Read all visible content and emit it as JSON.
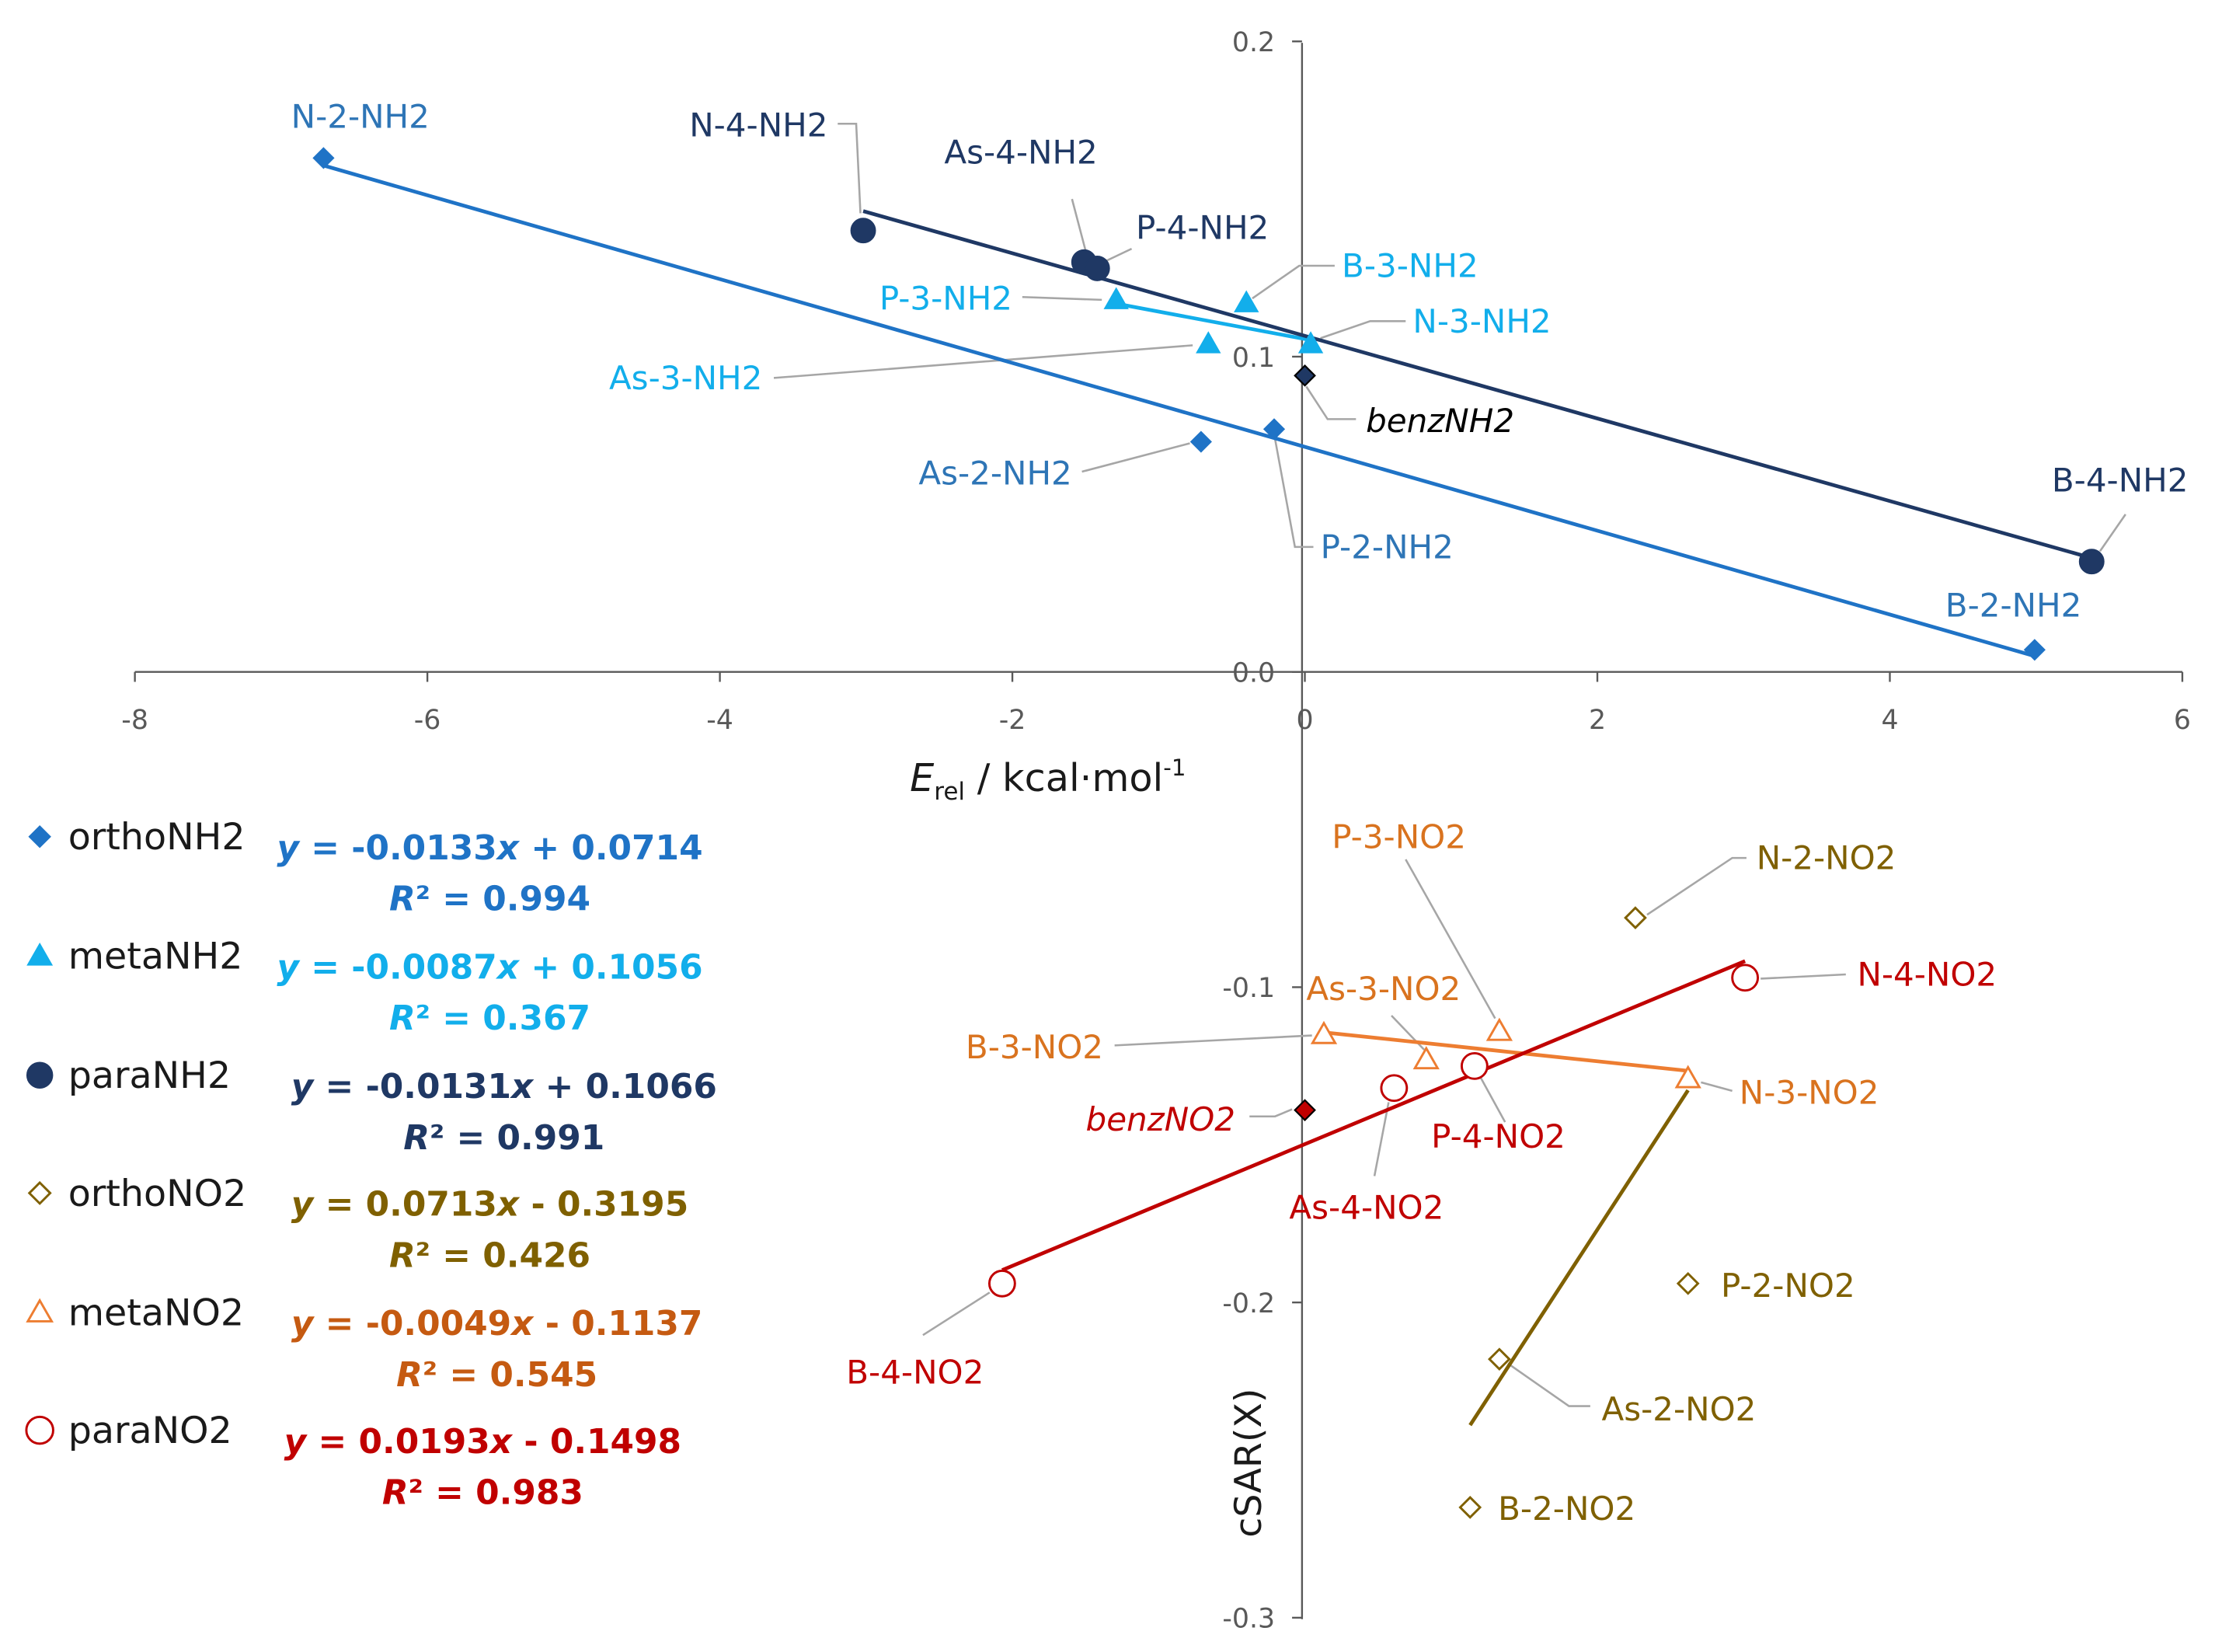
{
  "chart_data": {
    "type": "scatter",
    "xlabel": {
      "main": "E",
      "sub": "rel",
      "rest": " / kcal·mol",
      "sup": "-1"
    },
    "ylabel": "cSAR(X)",
    "xlim": [
      -8,
      6
    ],
    "ylim": [
      -0.3,
      0.2
    ],
    "xticks": [
      "-8",
      "-6",
      "-4",
      "-2",
      "0",
      "2",
      "4",
      "6"
    ],
    "xtick_values": [
      -8,
      -6,
      -4,
      -2,
      0,
      2,
      4,
      6
    ],
    "yticks": [
      "0.2",
      "0.1",
      "0.0",
      "-0.1",
      "-0.2",
      "-0.3"
    ],
    "ytick_values": [
      0.2,
      0.1,
      0.0,
      -0.1,
      -0.2,
      -0.3
    ],
    "grid": false,
    "legend_placement": "left",
    "series": [
      {
        "name": "orthoNH2",
        "color": "#1F73C6",
        "label_color": "#2E75B6",
        "marker": "diamond-filled",
        "equation": {
          "y": "y",
          "rest": " = -0.0133",
          "x": "x",
          "tail": " + 0.0714"
        },
        "r2": {
          "R": "R",
          "rest": "² = 0.994"
        },
        "slope": -0.0133,
        "intercept": 0.0714,
        "points": [
          {
            "label": "N-2-NH2",
            "x": -6.71,
            "y": 0.163
          },
          {
            "label": "As-2-NH2",
            "x": -0.71,
            "y": 0.073
          },
          {
            "label": "P-2-NH2",
            "x": -0.21,
            "y": 0.077
          },
          {
            "label": "B-2-NH2",
            "x": 4.99,
            "y": 0.007
          }
        ]
      },
      {
        "name": "metaNH2",
        "color": "#12AEEB",
        "label_color": "#12AEEB",
        "marker": "triangle-filled",
        "equation": {
          "y": "y",
          "rest": " = -0.0087",
          "x": "x",
          "tail": " + 0.1056"
        },
        "r2": {
          "R": "R",
          "rest": "² = 0.367"
        },
        "slope": -0.0087,
        "intercept": 0.1056,
        "points": [
          {
            "label": "P-3-NH2",
            "x": -1.29,
            "y": 0.118
          },
          {
            "label": "As-3-NH2",
            "x": -0.66,
            "y": 0.104
          },
          {
            "label": "B-3-NH2",
            "x": -0.4,
            "y": 0.117
          },
          {
            "label": "N-3-NH2",
            "x": 0.04,
            "y": 0.104
          }
        ]
      },
      {
        "name": "paraNH2",
        "color": "#1F3864",
        "label_color": "#1F3864",
        "marker": "circle-filled",
        "equation": {
          "y": "y",
          "rest": " = -0.0131",
          "x": "x",
          "tail": " + 0.1066"
        },
        "r2": {
          "R": "R",
          "rest": "² = 0.991"
        },
        "slope": -0.0131,
        "intercept": 0.1066,
        "points": [
          {
            "label": "N-4-NH2",
            "x": -3.02,
            "y": 0.14
          },
          {
            "label": "As-4-NH2",
            "x": -1.51,
            "y": 0.13
          },
          {
            "label": "P-4-NH2",
            "x": -1.42,
            "y": 0.128
          },
          {
            "label": "B-4-NH2",
            "x": 5.38,
            "y": 0.035
          }
        ]
      },
      {
        "name": "orthoNO2",
        "color": "#7F6000",
        "label_color": "#7F6000",
        "marker": "diamond-open",
        "equation": {
          "y": "y",
          "rest": " = 0.0713",
          "x": "x",
          "tail": " - 0.3195"
        },
        "r2": {
          "R": "R",
          "rest": "² = 0.426"
        },
        "slope": 0.0713,
        "intercept": -0.3195,
        "points": [
          {
            "label": "N-2-NO2",
            "x": 2.26,
            "y": -0.078
          },
          {
            "label": "P-2-NO2",
            "x": 2.62,
            "y": -0.194
          },
          {
            "label": "As-2-NO2",
            "x": 1.33,
            "y": -0.218
          },
          {
            "label": "B-2-NO2",
            "x": 1.13,
            "y": -0.265
          }
        ]
      },
      {
        "name": "metaNO2",
        "color": "#ED7D31",
        "label_color": "#D9731F",
        "eq_color": "#C55A11",
        "marker": "triangle-open",
        "equation": {
          "y": "y",
          "rest": " = -0.0049",
          "x": "x",
          "tail": " - 0.1137"
        },
        "r2": {
          "R": "R",
          "rest": "² = 0.545"
        },
        "slope": -0.0049,
        "intercept": -0.1137,
        "points": [
          {
            "label": "B-3-NO2",
            "x": 0.13,
            "y": -0.115
          },
          {
            "label": "As-3-NO2",
            "x": 0.83,
            "y": -0.123
          },
          {
            "label": "P-3-NO2",
            "x": 1.33,
            "y": -0.114
          },
          {
            "label": "N-3-NO2",
            "x": 2.62,
            "y": -0.129
          }
        ]
      },
      {
        "name": "paraNO2",
        "color": "#C00000",
        "label_color": "#C00000",
        "marker": "circle-open",
        "equation": {
          "y": "y",
          "rest": " = 0.0193",
          "x": "x",
          "tail": " - 0.1498"
        },
        "r2": {
          "R": "R",
          "rest": "² = 0.983"
        },
        "slope": 0.0193,
        "intercept": -0.1498,
        "points": [
          {
            "label": "N-4-NO2",
            "x": 3.01,
            "y": -0.097
          },
          {
            "label": "P-4-NO2",
            "x": 1.16,
            "y": -0.125
          },
          {
            "label": "As-4-NO2",
            "x": 0.61,
            "y": -0.132
          },
          {
            "label": "B-4-NO2",
            "x": -2.07,
            "y": -0.194
          }
        ]
      }
    ],
    "references": [
      {
        "label": "benzNH2",
        "x": 0,
        "y": 0.094,
        "color": "#1F3864",
        "label_color": "#000000"
      },
      {
        "label": "benzNO2",
        "x": 0,
        "y": -0.139,
        "color": "#C00000",
        "label_color": "#C00000"
      }
    ]
  }
}
